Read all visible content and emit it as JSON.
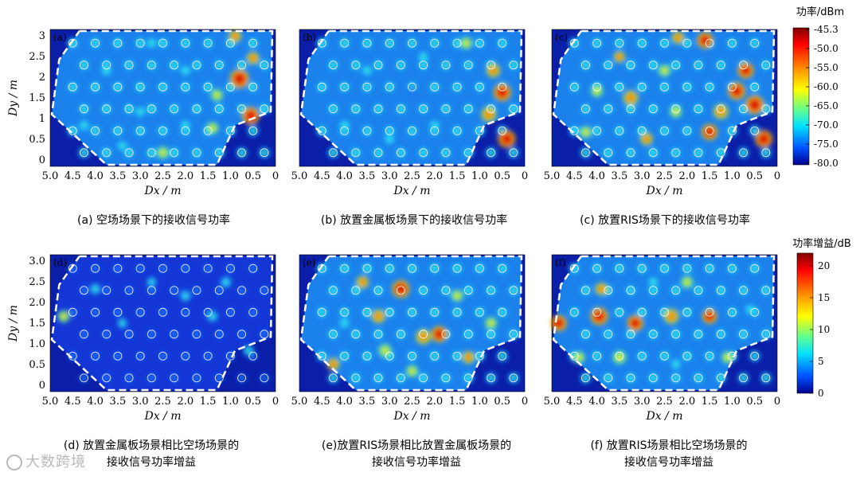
{
  "chart_data": [
    {
      "type": "heatmap",
      "panel_tag": "(a)",
      "caption": "(a) 空场场景下的接收信号功率",
      "xlabel": "Dx / m",
      "ylabel": "Dy / m",
      "x_ticks": [
        "5.0",
        "4.5",
        "4.0",
        "3.5",
        "3.0",
        "2.5",
        "2.0",
        "1.5",
        "1.0",
        "0.5",
        "0"
      ],
      "y_ticks": [
        "0",
        "0.5",
        "1",
        "1.5",
        "2",
        "2.5",
        "3"
      ],
      "xlim": [
        5.0,
        0
      ],
      "ylim": [
        0,
        3.1
      ],
      "scale": "power"
    },
    {
      "type": "heatmap",
      "panel_tag": "(b)",
      "caption": "(b) 放置金属板场景下的接收信号功率",
      "xlabel": "Dx / m",
      "ylabel": "",
      "x_ticks": [
        "5.0",
        "4.5",
        "4.0",
        "3.5",
        "3.0",
        "2.5",
        "2.0",
        "1.5",
        "1.0",
        "0.5",
        "0"
      ],
      "y_ticks": [],
      "xlim": [
        5.0,
        0
      ],
      "ylim": [
        0,
        3.1
      ],
      "scale": "power"
    },
    {
      "type": "heatmap",
      "panel_tag": "(c)",
      "caption": "(c) 放置RIS场景下的接收信号功率",
      "xlabel": "Dx / m",
      "ylabel": "",
      "x_ticks": [
        "5.0",
        "4.5",
        "4.0",
        "3.5",
        "3.0",
        "2.5",
        "2.0",
        "1.5",
        "1.0",
        "0.5",
        "0"
      ],
      "y_ticks": [],
      "xlim": [
        5.0,
        0
      ],
      "ylim": [
        0,
        3.1
      ],
      "scale": "power"
    },
    {
      "type": "heatmap",
      "panel_tag": "(d)",
      "caption": "(d) 放置金属板场景相比空场场景的接收信号功率增益",
      "caption_lines": [
        "(d) 放置金属板场景相比空场场景的",
        "接收信号功率增益"
      ],
      "xlabel": "Dx / m",
      "ylabel": "Dy / m",
      "x_ticks": [
        "5.0",
        "4.5",
        "4.0",
        "3.5",
        "3.0",
        "2.5",
        "2.0",
        "1.5",
        "1.0",
        "0.5",
        "0"
      ],
      "y_ticks": [
        "0",
        "0.5",
        "1.0",
        "1.5",
        "2.0",
        "2.5",
        "3.0"
      ],
      "xlim": [
        5.0,
        0
      ],
      "ylim": [
        0,
        3.1
      ],
      "scale": "gain"
    },
    {
      "type": "heatmap",
      "panel_tag": "(e)",
      "caption": "(e)放置RIS场景相比放置金属板场景的接收信号功率增益",
      "caption_lines": [
        "(e)放置RIS场景相比放置金属板场景的",
        "接收信号功率增益"
      ],
      "xlabel": "Dx / m",
      "ylabel": "",
      "x_ticks": [
        "5.0",
        "4.5",
        "4.0",
        "3.5",
        "3.0",
        "2.5",
        "2.0",
        "1.5",
        "1.0",
        "0.5",
        "0"
      ],
      "y_ticks": [],
      "xlim": [
        5.0,
        0
      ],
      "ylim": [
        0,
        3.1
      ],
      "scale": "gain"
    },
    {
      "type": "heatmap",
      "panel_tag": "(f)",
      "caption": "(f) 放置RIS场景相比空场场景的接收信号功率增益",
      "caption_lines": [
        "(f) 放置RIS场景相比空场场景的",
        "接收信号功率增益"
      ],
      "xlabel": "Dx / m",
      "ylabel": "",
      "x_ticks": [
        "5.0",
        "4.5",
        "4.0",
        "3.5",
        "3.0",
        "2.5",
        "2.0",
        "1.5",
        "1.0",
        "0.5",
        "0"
      ],
      "y_ticks": [],
      "xlim": [
        5.0,
        0
      ],
      "ylim": [
        0,
        3.1
      ],
      "scale": "gain"
    }
  ],
  "colorbars": {
    "power": {
      "title": "功率/dBm",
      "ticks": [
        "-45.3",
        "-50.0",
        "-55.0",
        "-60.0",
        "-65.0",
        "-70.0",
        "-75.0",
        "-80.0"
      ],
      "range": [
        -80.0,
        -45.3
      ]
    },
    "gain": {
      "title": "功率增益/dB",
      "ticks": [
        "20",
        "15",
        "10",
        "5",
        "0"
      ],
      "range": [
        0,
        22
      ]
    }
  },
  "captions": {
    "a": "(a) 空场场景下的接收信号功率",
    "b": "(b) 放置金属板场景下的接收信号功率",
    "c": "(c) 放置RIS场景下的接收信号功率",
    "d1": "(d) 放置金属板场景相比空场场景的",
    "d2": "接收信号功率增益",
    "e1": "(e)放置RIS场景相比放置金属板场景的",
    "e2": "接收信号功率增益",
    "f1": "(f) 放置RIS场景相比空场场景的",
    "f2": "接收信号功率增益"
  },
  "watermark": "大数跨境"
}
